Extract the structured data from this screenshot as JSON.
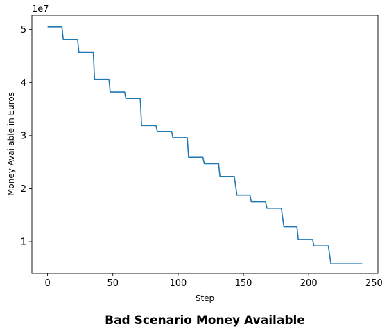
{
  "chart_data": {
    "type": "line",
    "title": "Bad Scenario Money Available",
    "xlabel": "Step",
    "ylabel": "Money Available in Euros",
    "offset_label": "1e7",
    "xlim": [
      -12,
      253
    ],
    "ylim": [
      0.4,
      5.27
    ],
    "x_ticks": [
      0,
      50,
      100,
      150,
      200,
      250
    ],
    "x_tick_labels": [
      "0",
      "50",
      "100",
      "150",
      "200",
      "250"
    ],
    "y_ticks": [
      1,
      2,
      3,
      4,
      5
    ],
    "y_tick_labels": [
      "1",
      "2",
      "3",
      "4",
      "5"
    ],
    "grid": false,
    "legend": "none",
    "line_color": "#1f77b4",
    "series": [
      {
        "x": [
          0,
          11,
          12,
          23,
          24,
          35,
          36,
          47,
          48,
          59,
          60,
          71,
          72,
          83,
          84,
          95,
          96,
          107,
          108,
          119,
          120,
          131,
          132,
          143,
          145,
          155,
          156,
          167,
          168,
          179,
          181,
          191,
          192,
          203,
          204,
          215,
          217,
          241
        ],
        "y": [
          5.05,
          5.05,
          4.81,
          4.81,
          4.57,
          4.57,
          4.06,
          4.06,
          3.82,
          3.82,
          3.7,
          3.7,
          3.19,
          3.19,
          3.08,
          3.08,
          2.96,
          2.96,
          2.59,
          2.59,
          2.47,
          2.47,
          2.23,
          2.23,
          1.88,
          1.88,
          1.75,
          1.75,
          1.63,
          1.63,
          1.28,
          1.28,
          1.04,
          1.04,
          0.92,
          0.92,
          0.58,
          0.58
        ]
      }
    ]
  }
}
